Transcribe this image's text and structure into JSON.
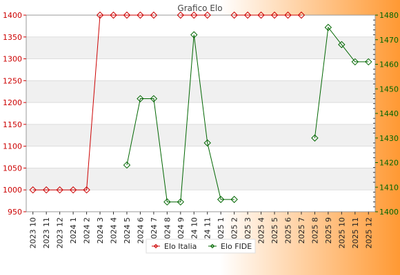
{
  "chart_data": {
    "type": "line",
    "title": "Grafico Elo",
    "categories": [
      "2023 10",
      "2023 11",
      "2023 12",
      "2024 1",
      "2024 2",
      "2024 3",
      "2024 4",
      "2024 5",
      "2024 6",
      "2024 7",
      "2024 8",
      "2024 9",
      "2024 10",
      "2024 11",
      "2025 1",
      "2025 2",
      "2025 3",
      "2025 4",
      "2025 5",
      "2025 6",
      "2025 7",
      "2025 8",
      "2025 9",
      "2025 10",
      "2025 11",
      "2025 12"
    ],
    "y_left": {
      "ylim": [
        950,
        1400
      ],
      "ticks": [
        "950",
        "1000",
        "1050",
        "1100",
        "1150",
        "1200",
        "1250",
        "1300",
        "1350",
        "1400"
      ],
      "color": "#cc0000"
    },
    "y_right": {
      "ylim": [
        1400,
        1480
      ],
      "ticks": [
        "1400",
        "1410",
        "1420",
        "1430",
        "1440",
        "1450",
        "1460",
        "1470",
        "1480"
      ],
      "color": "#006600"
    },
    "series": [
      {
        "name": "Elo Italia",
        "axis": "left",
        "color": "#cc0000",
        "values": [
          1000,
          1000,
          1000,
          1000,
          1000,
          1400,
          1400,
          1400,
          1400,
          1400,
          null,
          1400,
          1400,
          1400,
          null,
          1400,
          1400,
          1400,
          1400,
          1400,
          1400,
          null,
          null,
          null,
          null,
          null
        ]
      },
      {
        "name": "Elo FIDE",
        "axis": "right",
        "color": "#006600",
        "values": [
          null,
          null,
          null,
          null,
          null,
          null,
          null,
          1419,
          1446,
          1446,
          1404,
          1404,
          1472,
          1428,
          1405,
          1405,
          null,
          null,
          null,
          null,
          null,
          1430,
          1475,
          1468,
          1461,
          1461
        ]
      }
    ],
    "grid": true,
    "legend": "bottom-center",
    "background": {
      "plot_band_light": "#ffffff",
      "plot_band_dark": "#f0f0f0",
      "gradient_end": "#ff9933"
    }
  }
}
